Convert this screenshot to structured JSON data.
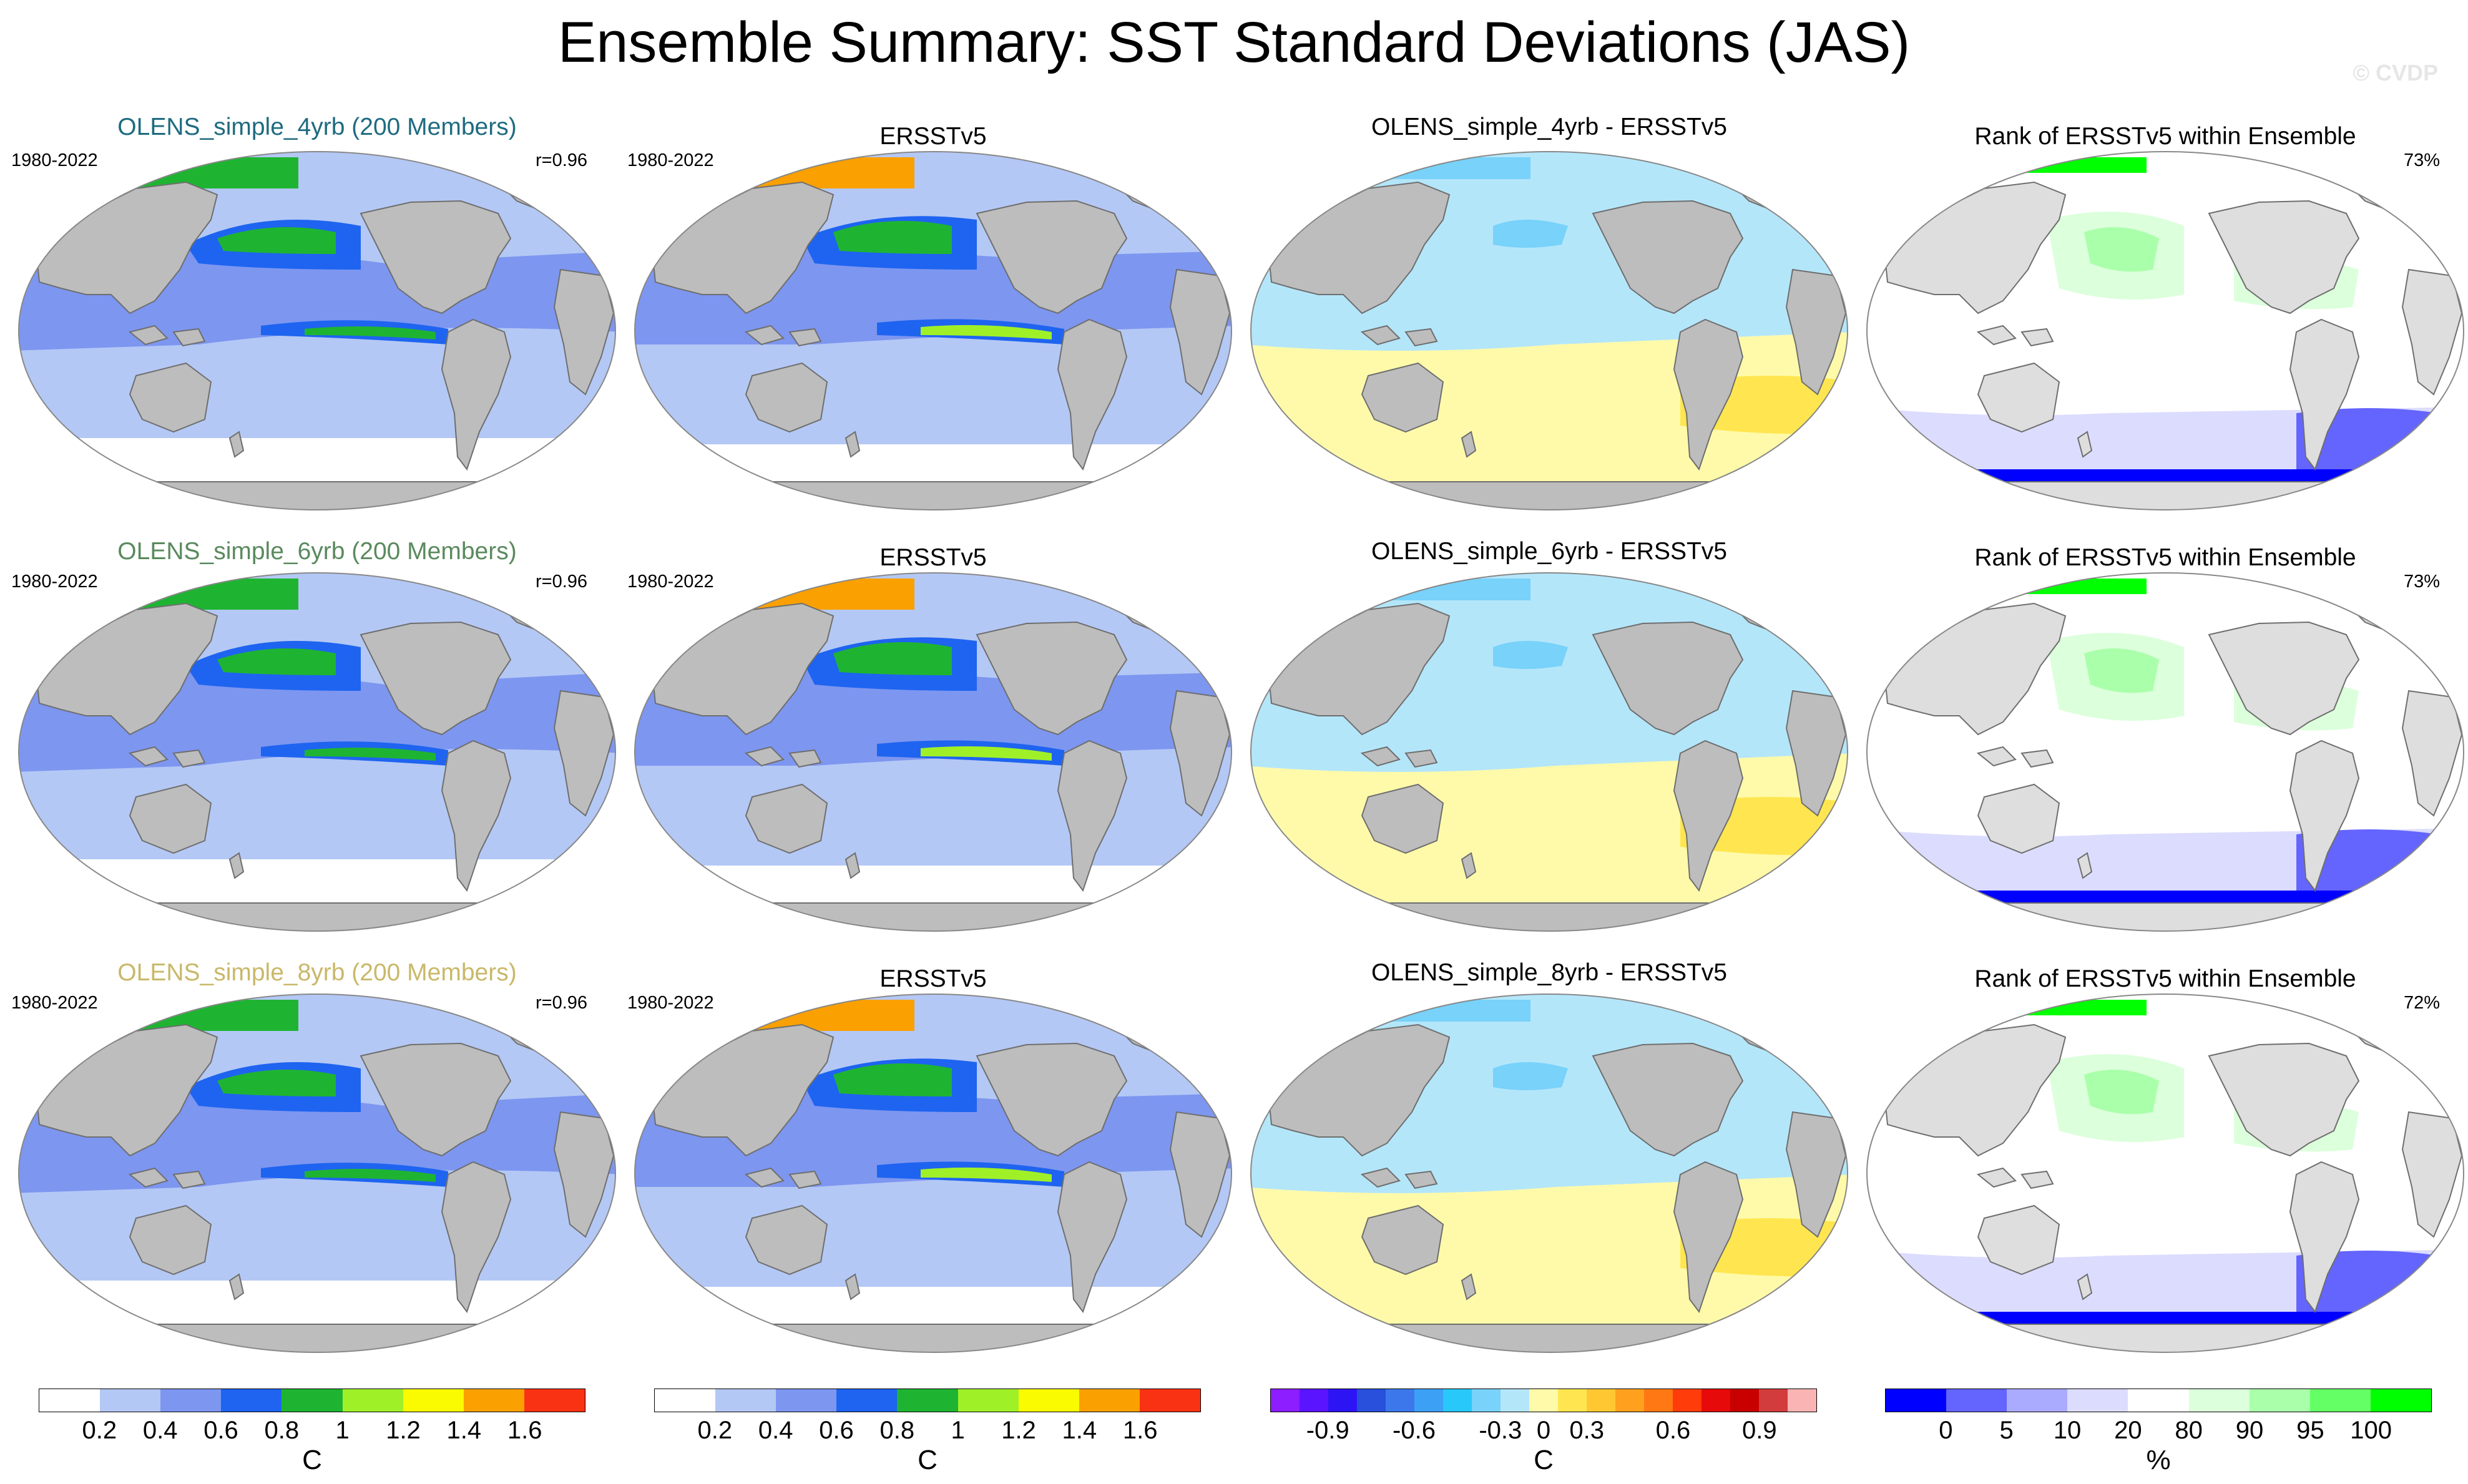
{
  "title": "Ensemble Summary: SST Standard Deviations (JAS)",
  "watermark": "© CVDP",
  "rows": [
    {
      "ens_title": "OLENS_simple_4yrb (200 Members)",
      "ens_title_color": "#1f6b80",
      "period": "1980-2022",
      "ens_corr": "r=0.96",
      "obs_title": "ERSSTv5",
      "obs_period": "1980-2022",
      "diff_title": "OLENS_simple_4yrb - ERSSTv5",
      "rank_title": "Rank of ERSSTv5 within Ensemble",
      "rank_pct": "73%"
    },
    {
      "ens_title": "OLENS_simple_6yrb (200 Members)",
      "ens_title_color": "#5a8a5e",
      "period": "1980-2022",
      "ens_corr": "r=0.96",
      "obs_title": "ERSSTv5",
      "obs_period": "1980-2022",
      "diff_title": "OLENS_simple_6yrb - ERSSTv5",
      "rank_title": "Rank of ERSSTv5 within Ensemble",
      "rank_pct": "73%"
    },
    {
      "ens_title": "OLENS_simple_8yrb (200 Members)",
      "ens_title_color": "#c9b86a",
      "period": "1980-2022",
      "ens_corr": "r=0.96",
      "obs_title": "ERSSTv5",
      "obs_period": "1980-2022",
      "diff_title": "OLENS_simple_8yrb - ERSSTv5",
      "rank_title": "Rank of ERSSTv5 within Ensemble",
      "rank_pct": "72%"
    }
  ],
  "colorbars": [
    {
      "colors": [
        "#ffffff",
        "#b4c8f5",
        "#7d96f0",
        "#1e64f0",
        "#1eb432",
        "#a0f028",
        "#fafa00",
        "#faa000",
        "#fa3214"
      ],
      "labels": [
        "0.2",
        "0.4",
        "0.6",
        "0.8",
        "1",
        "1.2",
        "1.4",
        "1.6"
      ],
      "unit": "C"
    },
    {
      "colors": [
        "#ffffff",
        "#b4c8f5",
        "#7d96f0",
        "#1e64f0",
        "#1eb432",
        "#a0f028",
        "#fafa00",
        "#faa000",
        "#fa3214"
      ],
      "labels": [
        "0.2",
        "0.4",
        "0.6",
        "0.8",
        "1",
        "1.2",
        "1.4",
        "1.6"
      ],
      "unit": "C"
    },
    {
      "colors": [
        "#8c1eff",
        "#5a14ff",
        "#2d14f5",
        "#2850dc",
        "#3c78eb",
        "#3ca0f5",
        "#28c8fa",
        "#78d2fa",
        "#b4e6fa",
        "#fffaaa",
        "#ffe650",
        "#ffc832",
        "#ffa01e",
        "#ff7814",
        "#ff3c0a",
        "#e60a0a",
        "#c80000",
        "#d23c3c",
        "#fab4b4"
      ],
      "labels": [
        "-0.9",
        "-0.6",
        "-0.3",
        "0",
        "0.3",
        "0.6",
        "0.9"
      ],
      "unit": "C"
    },
    {
      "colors": [
        "#0000ff",
        "#6464ff",
        "#aaaaff",
        "#dcdcff",
        "#ffffff",
        "#dcffdc",
        "#aaffaa",
        "#64ff64",
        "#00ff00"
      ],
      "labels": [
        "0",
        "5",
        "10",
        "20",
        "80",
        "90",
        "95",
        "100"
      ],
      "unit": "%"
    }
  ]
}
